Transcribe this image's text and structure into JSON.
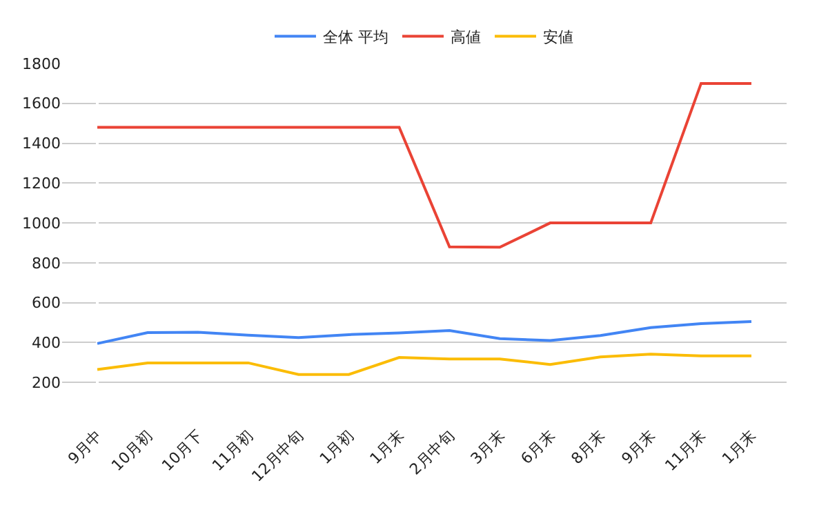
{
  "chart_data": {
    "type": "line",
    "categories": [
      "9月中",
      "10月初",
      "10月下",
      "11月初",
      "12月中旬",
      "1月初",
      "1月末",
      "2月中旬",
      "3月末",
      "6月末",
      "8月末",
      "9月末",
      "11月末",
      "1月末"
    ],
    "series": [
      {
        "name": "全体 平均",
        "color": "#4285f4",
        "values": [
          395,
          450,
          452,
          437,
          425,
          440,
          448,
          460,
          420,
          410,
          435,
          475,
          495,
          505
        ]
      },
      {
        "name": "高値",
        "color": "#ea4335",
        "values": [
          1480,
          1480,
          1480,
          1480,
          1480,
          1480,
          1480,
          880,
          878,
          1000,
          1000,
          1000,
          1700,
          1700
        ]
      },
      {
        "name": "安値",
        "color": "#fbbc04",
        "values": [
          265,
          298,
          298,
          298,
          240,
          240,
          325,
          318,
          318,
          290,
          328,
          342,
          333,
          333
        ]
      }
    ],
    "ylim": [
      0,
      1800
    ],
    "yticks": [
      200,
      400,
      600,
      800,
      1000,
      1200,
      1400,
      1600,
      1800
    ],
    "grid": "y",
    "legend": "top",
    "marker": "none",
    "line_style": "solid"
  }
}
